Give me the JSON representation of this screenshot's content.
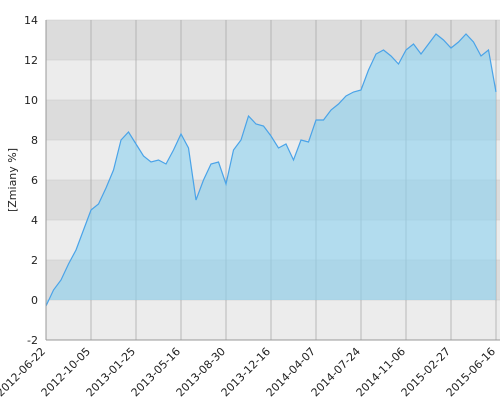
{
  "chart_data": {
    "type": "area",
    "y_label": "[Zmiany %]",
    "categories": [
      "2012-06-22",
      null,
      null,
      null,
      null,
      null,
      "2012-10-05",
      null,
      null,
      null,
      null,
      null,
      "2013-01-25",
      null,
      null,
      null,
      null,
      null,
      "2013-05-16",
      null,
      null,
      null,
      null,
      null,
      "2013-08-30",
      null,
      null,
      null,
      null,
      null,
      "2013-12-16",
      null,
      null,
      null,
      null,
      null,
      "2014-04-07",
      null,
      null,
      null,
      null,
      null,
      "2014-07-24",
      null,
      null,
      null,
      null,
      null,
      "2014-11-06",
      null,
      null,
      null,
      null,
      null,
      "2015-02-27",
      null,
      null,
      null,
      null,
      null,
      "2015-06-16"
    ],
    "values": [
      -0.3,
      0.5,
      1.0,
      1.8,
      2.5,
      3.5,
      4.5,
      4.8,
      5.6,
      6.5,
      8.0,
      8.4,
      7.8,
      7.2,
      6.9,
      7.0,
      6.8,
      7.5,
      8.3,
      7.6,
      5.0,
      6.0,
      6.8,
      6.9,
      5.8,
      7.5,
      8.0,
      9.2,
      8.8,
      8.7,
      8.2,
      7.6,
      7.8,
      7.0,
      8.0,
      7.9,
      9.0,
      9.0,
      9.5,
      9.8,
      10.2,
      10.4,
      10.5,
      11.5,
      12.3,
      12.5,
      12.2,
      11.8,
      12.5,
      12.8,
      12.3,
      12.8,
      13.3,
      13.0,
      12.6,
      12.9,
      13.3,
      12.9,
      12.2,
      12.5,
      10.4
    ],
    "color": "#4aa3e8",
    "ylim": [
      -2,
      14
    ],
    "yticks": [
      -2,
      0,
      2,
      4,
      6,
      8,
      10,
      12,
      14
    ],
    "grid": true
  }
}
